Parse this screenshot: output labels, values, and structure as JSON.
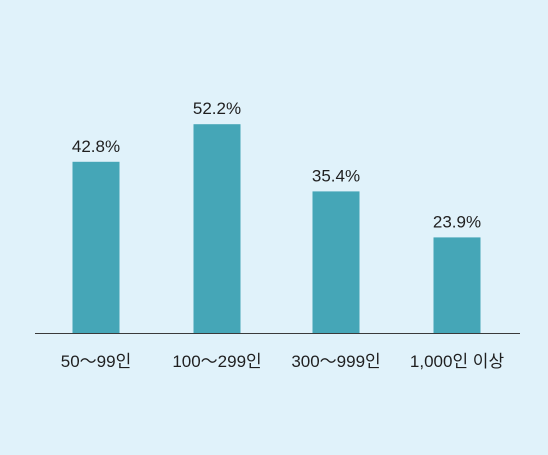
{
  "colors": {
    "background": "#e0f2fa",
    "bar": "#45a6b7",
    "axis": "#3a3a3a",
    "text": "#1f1f1f"
  },
  "chart_data": {
    "type": "bar",
    "categories": [
      "50～99인",
      "100～299인",
      "300～999인",
      "1,000인 이상"
    ],
    "values": [
      42.8,
      52.2,
      35.4,
      23.9
    ],
    "value_labels": [
      "42.8%",
      "52.2%",
      "35.4%",
      "23.9%"
    ],
    "ylim": [
      0,
      60
    ],
    "grid": false,
    "legend": "none"
  }
}
